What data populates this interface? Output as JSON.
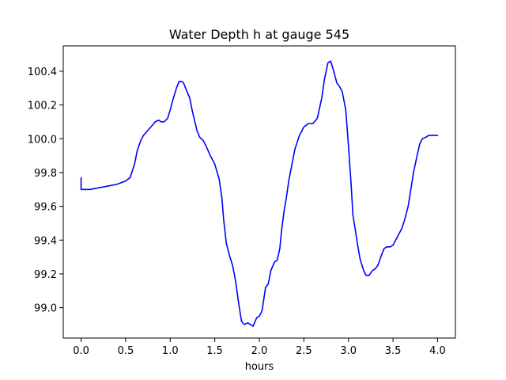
{
  "chart_data": {
    "type": "line",
    "title": "Water Depth h at gauge 545",
    "xlabel": "hours",
    "ylabel": "",
    "xlim": [
      -0.2,
      4.2
    ],
    "ylim": [
      98.82,
      100.55
    ],
    "x_ticks": [
      0.0,
      0.5,
      1.0,
      1.5,
      2.0,
      2.5,
      3.0,
      3.5,
      4.0
    ],
    "x_tick_labels": [
      "0.0",
      "0.5",
      "1.0",
      "1.5",
      "2.0",
      "2.5",
      "3.0",
      "3.5",
      "4.0"
    ],
    "y_ticks": [
      99.0,
      99.2,
      99.4,
      99.6,
      99.8,
      100.0,
      100.2,
      100.4
    ],
    "y_tick_labels": [
      "99.0",
      "99.2",
      "99.4",
      "99.6",
      "99.8",
      "100.0",
      "100.2",
      "100.4"
    ],
    "grid": false,
    "series": [
      {
        "color": "#0000ff",
        "x": [
          0.0,
          0.0,
          0.05,
          0.1,
          0.2,
          0.3,
          0.4,
          0.5,
          0.55,
          0.6,
          0.63,
          0.67,
          0.7,
          0.75,
          0.8,
          0.83,
          0.87,
          0.9,
          0.93,
          0.97,
          1.0,
          1.03,
          1.07,
          1.1,
          1.13,
          1.15,
          1.18,
          1.22,
          1.25,
          1.3,
          1.33,
          1.37,
          1.4,
          1.45,
          1.5,
          1.55,
          1.58,
          1.6,
          1.63,
          1.67,
          1.7,
          1.73,
          1.77,
          1.8,
          1.83,
          1.87,
          1.9,
          1.93,
          1.97,
          2.0,
          2.03,
          2.07,
          2.1,
          2.13,
          2.17,
          2.2,
          2.23,
          2.25,
          2.28,
          2.3,
          2.33,
          2.37,
          2.4,
          2.45,
          2.5,
          2.55,
          2.6,
          2.65,
          2.7,
          2.73,
          2.77,
          2.8,
          2.83,
          2.87,
          2.9,
          2.93,
          2.97,
          3.0,
          3.03,
          3.05,
          3.08,
          3.1,
          3.13,
          3.17,
          3.2,
          3.23,
          3.27,
          3.3,
          3.33,
          3.37,
          3.4,
          3.43,
          3.47,
          3.5,
          3.55,
          3.6,
          3.63,
          3.67,
          3.7,
          3.73,
          3.77,
          3.8,
          3.83,
          3.87,
          3.9,
          3.93,
          3.97,
          4.0
        ],
        "y": [
          99.77,
          99.7,
          99.7,
          99.7,
          99.71,
          99.72,
          99.73,
          99.75,
          99.77,
          99.85,
          99.93,
          99.99,
          100.02,
          100.05,
          100.08,
          100.1,
          100.11,
          100.1,
          100.1,
          100.12,
          100.17,
          100.23,
          100.3,
          100.34,
          100.34,
          100.33,
          100.29,
          100.24,
          100.16,
          100.05,
          100.01,
          99.99,
          99.96,
          99.9,
          99.85,
          99.76,
          99.65,
          99.52,
          99.38,
          99.3,
          99.25,
          99.17,
          99.02,
          98.92,
          98.9,
          98.91,
          98.9,
          98.89,
          98.94,
          98.95,
          98.98,
          99.12,
          99.14,
          99.22,
          99.27,
          99.28,
          99.35,
          99.46,
          99.58,
          99.64,
          99.75,
          99.86,
          99.94,
          100.02,
          100.07,
          100.09,
          100.09,
          100.12,
          100.24,
          100.35,
          100.45,
          100.46,
          100.41,
          100.33,
          100.31,
          100.28,
          100.17,
          99.96,
          99.73,
          99.55,
          99.45,
          99.38,
          99.29,
          99.22,
          99.19,
          99.19,
          99.22,
          99.23,
          99.25,
          99.31,
          99.35,
          99.36,
          99.36,
          99.37,
          99.42,
          99.47,
          99.52,
          99.6,
          99.7,
          99.8,
          99.9,
          99.97,
          100.0,
          100.01,
          100.02,
          100.02,
          100.02,
          100.02
        ]
      }
    ]
  }
}
